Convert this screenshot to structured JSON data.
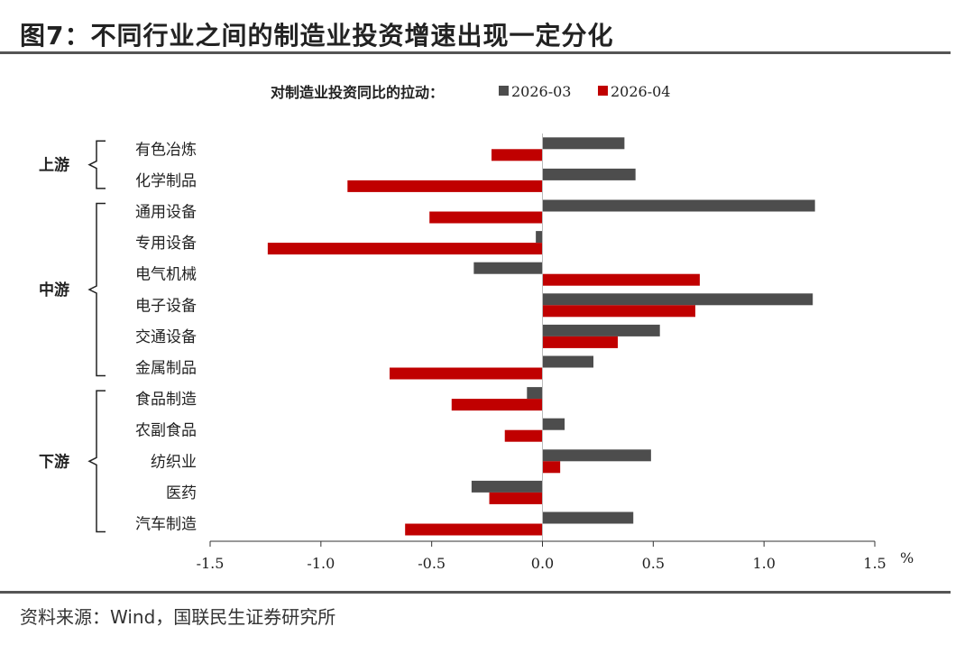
{
  "figure": {
    "title": "图7：不同行业之间的制造业投资增速出现一定分化",
    "source": "资料来源：Wind，国联民生证券研究所"
  },
  "chart_data": {
    "type": "bar",
    "orientation": "horizontal",
    "legend_title": "对制造业投资同比的拉动：",
    "categories": [
      "有色冶炼",
      "化学制品",
      "通用设备",
      "专用设备",
      "电气机械",
      "电子设备",
      "交通设备",
      "金属制品",
      "食品制造",
      "农副食品",
      "纺织业",
      "医药",
      "汽车制造"
    ],
    "series": [
      {
        "name": "2026-03",
        "color": "#4d4d4d",
        "values": [
          0.37,
          0.42,
          1.23,
          -0.03,
          -0.31,
          1.22,
          0.53,
          0.23,
          -0.07,
          0.1,
          0.49,
          -0.32,
          0.41
        ]
      },
      {
        "name": "2026-04",
        "color": "#c00000",
        "values": [
          -0.23,
          -0.88,
          -0.51,
          -1.24,
          0.71,
          0.69,
          0.34,
          -0.69,
          -0.41,
          -0.17,
          0.08,
          -0.24,
          -0.62
        ]
      }
    ],
    "groups": [
      {
        "label": "上游",
        "start": 0,
        "end": 1
      },
      {
        "label": "中游",
        "start": 2,
        "end": 7
      },
      {
        "label": "下游",
        "start": 8,
        "end": 12
      }
    ],
    "xlim": [
      -1.5,
      1.5
    ],
    "xticks": [
      "-1.5",
      "-1.0",
      "-0.5",
      "0.0",
      "0.5",
      "1.0",
      "1.5"
    ],
    "xunit": "%",
    "grid": false,
    "legend_position": "top"
  }
}
